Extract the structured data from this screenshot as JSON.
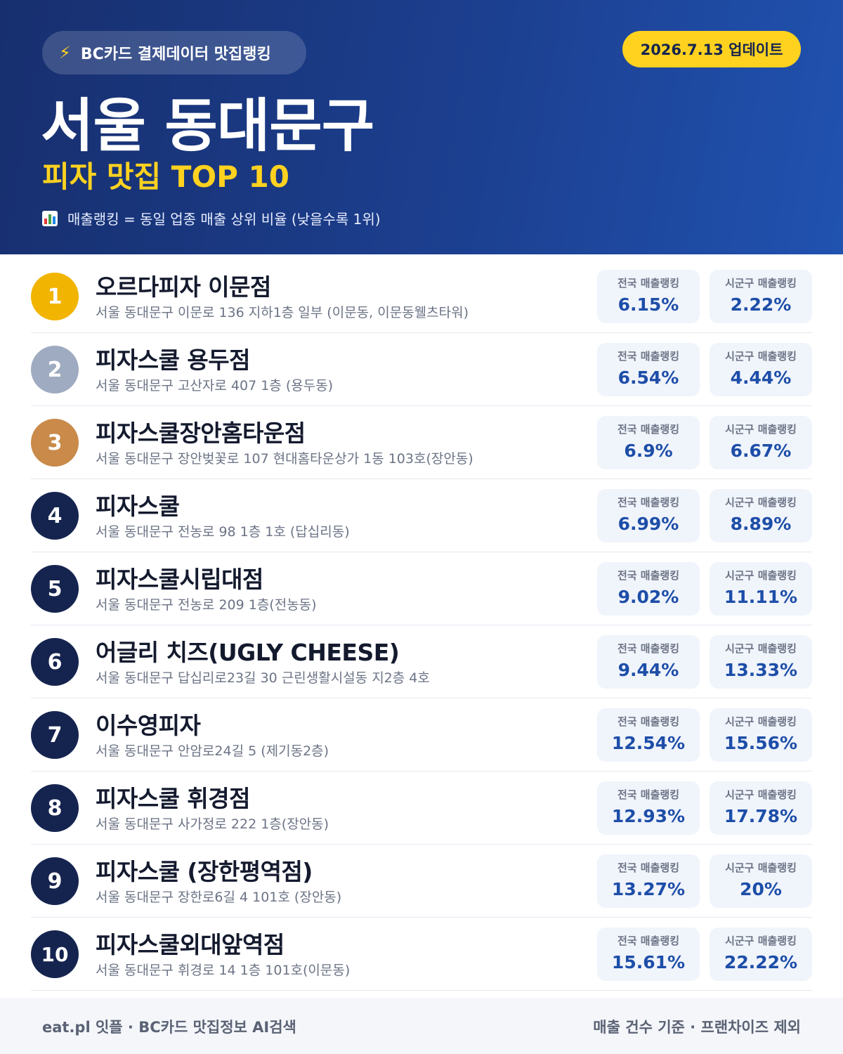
{
  "header": {
    "badge_icon": "lightning-icon",
    "badge_text": "BC카드 결제데이터 맛집랭킹",
    "update_text": "2026.7.13 업데이트",
    "title": "서울 동대문구",
    "subtitle": "피자 맛집 TOP 10",
    "legend_icon": "bar-chart-icon",
    "legend_text": "매출랭킹 = 동일 업종 매출 상위 비율 (낮을수록 1위)"
  },
  "colors": {
    "header_bg": "#1c3f8f",
    "accent_yellow": "#ffd21f",
    "rank_navy": "#15244f",
    "rank_gold": "#f1b400",
    "rank_silver": "#9fabc0",
    "rank_bronze": "#c98a4a",
    "value_blue": "#1d4ea8"
  },
  "labels": {
    "national": "전국 매출랭킹",
    "local": "시군구 매출랭킹"
  },
  "items": [
    {
      "rank": "1",
      "name": "오르다피자 이문점",
      "address": "서울 동대문구 이문로 136 지하1층 일부 (이문동, 이문동웰츠타워)",
      "national": "6.15%",
      "local": "2.22%"
    },
    {
      "rank": "2",
      "name": "피자스쿨 용두점",
      "address": "서울 동대문구 고산자로 407 1층 (용두동)",
      "national": "6.54%",
      "local": "4.44%"
    },
    {
      "rank": "3",
      "name": "피자스쿨장안홈타운점",
      "address": "서울 동대문구 장안벚꽃로 107 현대홈타운상가 1동 103호(장안동)",
      "national": "6.9%",
      "local": "6.67%"
    },
    {
      "rank": "4",
      "name": "피자스쿨",
      "address": "서울 동대문구 전농로 98 1층 1호 (답십리동)",
      "national": "6.99%",
      "local": "8.89%"
    },
    {
      "rank": "5",
      "name": "피자스쿨시립대점",
      "address": "서울 동대문구 전농로 209 1층(전농동)",
      "national": "9.02%",
      "local": "11.11%"
    },
    {
      "rank": "6",
      "name": "어글리 치즈(UGLY CHEESE)",
      "address": "서울 동대문구 답십리로23길 30 근린생활시설동 지2층 4호",
      "national": "9.44%",
      "local": "13.33%"
    },
    {
      "rank": "7",
      "name": "이수영피자",
      "address": "서울 동대문구 안암로24길 5 (제기동2층)",
      "national": "12.54%",
      "local": "15.56%"
    },
    {
      "rank": "8",
      "name": "피자스쿨 휘경점",
      "address": "서울 동대문구 사가정로 222 1층(장안동)",
      "national": "12.93%",
      "local": "17.78%"
    },
    {
      "rank": "9",
      "name": "피자스쿨 (장한평역점)",
      "address": "서울 동대문구 장한로6길 4 101호 (장안동)",
      "national": "13.27%",
      "local": "20%"
    },
    {
      "rank": "10",
      "name": "피자스쿨외대앞역점",
      "address": "서울 동대문구 휘경로 14 1층 101호(이문동)",
      "national": "15.61%",
      "local": "22.22%"
    }
  ],
  "footer": {
    "left": "eat.pl 잇플 · BC카드 맛집정보 AI검색",
    "right": "매출 건수 기준 · 프랜차이즈 제외"
  }
}
